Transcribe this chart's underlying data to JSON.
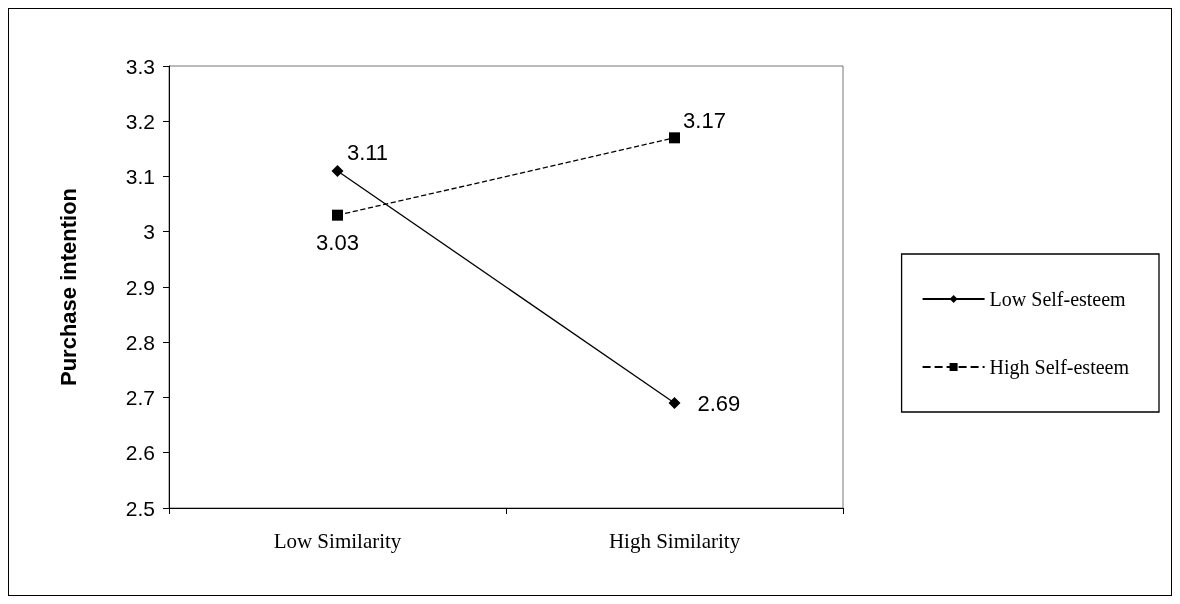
{
  "chart_data": {
    "type": "line",
    "ylabel": "Purchase intention",
    "categories": [
      "Low Similarity",
      "High Similarity"
    ],
    "series": [
      {
        "name": "Low Self-esteem",
        "color": "#000000",
        "values": [
          3.11,
          2.69
        ],
        "marker": "diamond",
        "line_style": "solid"
      },
      {
        "name": "High Self-esteem",
        "color": "#000000",
        "values": [
          3.03,
          3.17
        ],
        "marker": "square",
        "line_style": "dashed"
      }
    ],
    "ylim": [
      2.5,
      3.3
    ],
    "yticks": [
      2.5,
      2.6,
      2.7,
      2.8,
      2.9,
      3,
      3.1,
      3.2,
      3.3
    ],
    "grid": false,
    "legend": "right",
    "data_labels": true
  }
}
